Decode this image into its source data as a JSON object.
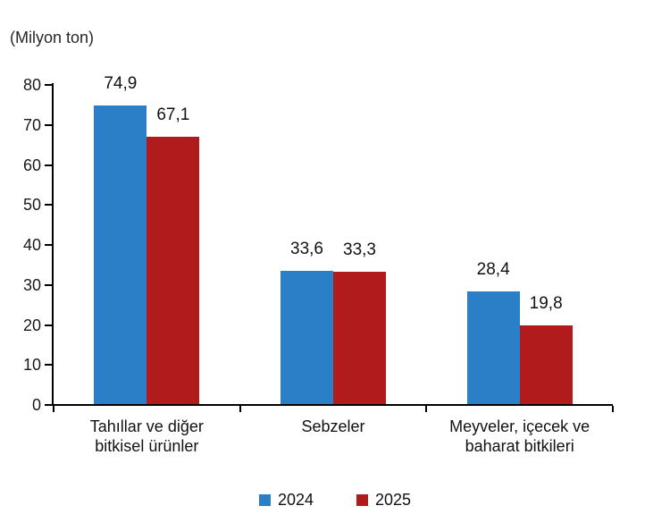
{
  "chart_data": {
    "type": "bar",
    "title": "",
    "ylabel": "(Milyon ton)",
    "xlabel": "",
    "categories": [
      "Tahıllar ve diğer\nbitkisel ürünler",
      "Sebzeler",
      "Meyveler, içecek ve\nbaharat bitkileri"
    ],
    "series": [
      {
        "name": "2024",
        "color": "#2A7FC6",
        "values": [
          74.9,
          33.6,
          28.4
        ],
        "value_labels": [
          "74,9",
          "33,6",
          "28,4"
        ]
      },
      {
        "name": "2025",
        "color": "#B21B1B",
        "values": [
          67.1,
          33.3,
          19.8
        ],
        "value_labels": [
          "67,1",
          "33,3",
          "19,8"
        ]
      }
    ],
    "ylim": [
      0,
      80
    ],
    "yticks": [
      0,
      10,
      20,
      30,
      40,
      50,
      60,
      70,
      80
    ],
    "grid": false,
    "legend_position": "bottom"
  },
  "colors": {
    "series_2024": "#2A7FC6",
    "series_2025": "#B21B1B",
    "axis": "#000000",
    "text": "#1a1a1a",
    "background": "#ffffff"
  }
}
